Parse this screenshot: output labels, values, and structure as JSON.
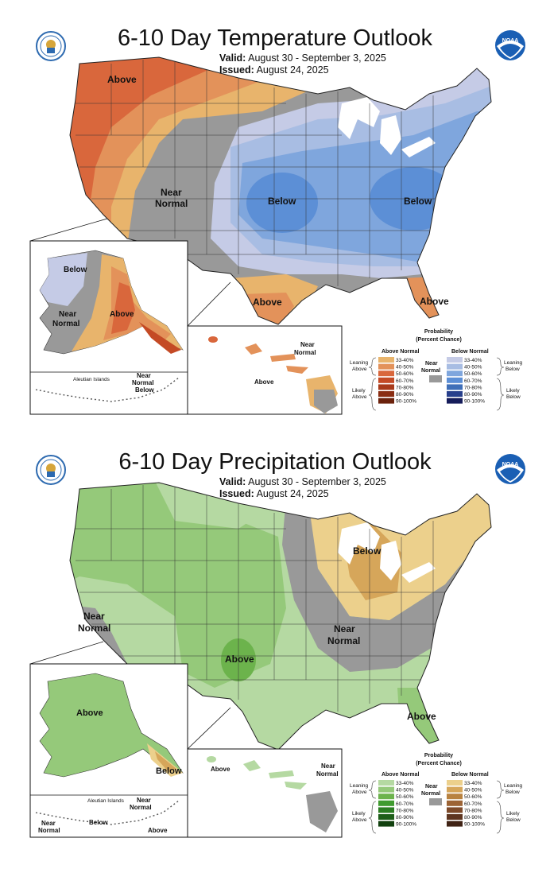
{
  "temperature": {
    "title": "6-10 Day Temperature Outlook",
    "valid_label": "Valid:",
    "valid_value": "August 30 - September 3, 2025",
    "issued_label": "Issued:",
    "issued_value": "August 24, 2025",
    "map_labels": {
      "above_nw": "Above",
      "near_normal_1": "Near",
      "near_normal_2": "Normal",
      "below_central": "Below",
      "below_east": "Below",
      "above_tx": "Above",
      "above_fl": "Above"
    },
    "alaska_labels": {
      "below": "Below",
      "near_1": "Near",
      "near_2": "Normal",
      "above": "Above"
    },
    "aleutian_labels": {
      "islands": "Aleutian Islands",
      "near": "Near",
      "normal": "Normal",
      "below": "Below"
    },
    "hawaii_labels": {
      "near_1": "Near",
      "near_2": "Normal",
      "above": "Above"
    },
    "legend": {
      "heading_1": "Probability",
      "heading_2": "(Percent Chance)",
      "above_header": "Above Normal",
      "below_header": "Below Normal",
      "near_1": "Near",
      "near_2": "Normal",
      "leaning_above_1": "Leaning",
      "leaning_above_2": "Above",
      "likely_above_1": "Likely",
      "likely_above_2": "Above",
      "leaning_below_1": "Leaning",
      "leaning_below_2": "Below",
      "likely_below_1": "Likely",
      "likely_below_2": "Below",
      "ranges": [
        "33-40%",
        "40-50%",
        "50-60%",
        "60-70%",
        "70-80%",
        "80-90%",
        "90-100%"
      ],
      "above_colors": [
        "#e8b46c",
        "#e3925a",
        "#d9673c",
        "#c44a25",
        "#a83a1a",
        "#8a2d12",
        "#6b220c"
      ],
      "below_colors": [
        "#c5cbe6",
        "#a8bde3",
        "#7fa6dd",
        "#5c8fd6",
        "#3f6fb8",
        "#273f8c",
        "#151c5a"
      ],
      "near_color": "#999999"
    }
  },
  "precipitation": {
    "title": "6-10 Day Precipitation Outlook",
    "valid_label": "Valid:",
    "valid_value": "August 30 - September 3, 2025",
    "issued_label": "Issued:",
    "issued_value": "August 24, 2025",
    "map_labels": {
      "below_mi": "Below",
      "near_ca_1": "Near",
      "near_ca_2": "Normal",
      "near_ohio_1": "Near",
      "near_ohio_2": "Normal",
      "above_tx": "Above",
      "above_fl": "Above"
    },
    "alaska_labels": {
      "above": "Above",
      "below": "Below"
    },
    "aleutian_labels": {
      "islands": "Aleutian Islands",
      "near_r": "Near",
      "normal_r": "Normal",
      "below": "Below",
      "near_l": "Near",
      "normal_l": "Normal",
      "above": "Above"
    },
    "hawaii_labels": {
      "above": "Above",
      "near_1": "Near",
      "near_2": "Normal"
    },
    "legend": {
      "heading_1": "Probability",
      "heading_2": "(Percent Chance)",
      "above_header": "Above Normal",
      "below_header": "Below Normal",
      "near_1": "Near",
      "near_2": "Normal",
      "leaning_above_1": "Leaning",
      "leaning_above_2": "Above",
      "likely_above_1": "Likely",
      "likely_above_2": "Above",
      "leaning_below_1": "Leaning",
      "leaning_below_2": "Below",
      "likely_below_1": "Likely",
      "likely_below_2": "Below",
      "ranges": [
        "33-40%",
        "40-50%",
        "50-60%",
        "60-70%",
        "70-80%",
        "80-90%",
        "90-100%"
      ],
      "above_colors": [
        "#b5d9a2",
        "#95c97a",
        "#6cb34c",
        "#3f9b2f",
        "#2b7d22",
        "#1d5e18",
        "#11400e"
      ],
      "below_colors": [
        "#ecd08c",
        "#d6a65a",
        "#b88240",
        "#9c6335",
        "#7d4a2a",
        "#5e3520",
        "#402315"
      ],
      "near_color": "#999999"
    }
  },
  "colors": {
    "noaa_blue": "#1a5fb4",
    "doc_blue": "#2d6ab0",
    "doc_gold": "#d6a53a",
    "state_line": "#333333",
    "lake_fill": "#ffffff"
  }
}
